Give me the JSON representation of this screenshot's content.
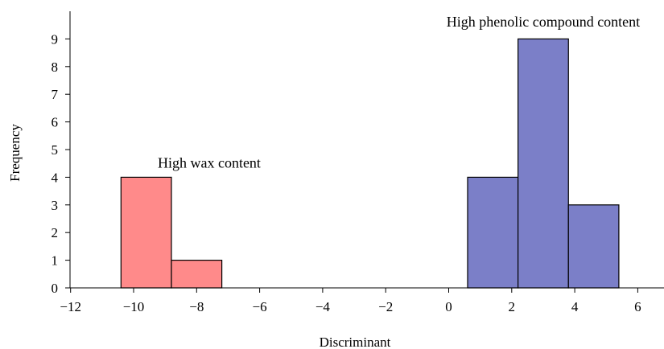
{
  "chart_data": {
    "type": "bar",
    "xlabel": "Discriminant",
    "ylabel": "Frequency",
    "xlim": [
      -12,
      7
    ],
    "ylim": [
      0,
      10
    ],
    "x_ticks": [
      -12,
      -10,
      -8,
      -6,
      -4,
      -2,
      0,
      2,
      4,
      6
    ],
    "x_tick_labels": [
      "−12",
      "−10",
      "−8",
      "−6",
      "−4",
      "−2",
      "0",
      "2",
      "4",
      "6"
    ],
    "y_ticks": [
      0,
      1,
      2,
      3,
      4,
      5,
      6,
      7,
      8,
      9
    ],
    "y_tick_labels": [
      "0",
      "1",
      "2",
      "3",
      "4",
      "5",
      "6",
      "7",
      "8",
      "9"
    ],
    "grid": false,
    "series": [
      {
        "name": "High wax content",
        "color": "#ff8a8a",
        "bins": [
          {
            "x0": -10.4,
            "x1": -8.8,
            "value": 4
          },
          {
            "x0": -8.8,
            "x1": -7.2,
            "value": 1
          }
        ]
      },
      {
        "name": "High phenolic compound content",
        "color": "#7b7fc8",
        "bins": [
          {
            "x0": 0.6,
            "x1": 2.2,
            "value": 4
          },
          {
            "x0": 2.2,
            "x1": 3.8,
            "value": 9
          },
          {
            "x0": 3.8,
            "x1": 5.4,
            "value": 3
          }
        ]
      }
    ],
    "annotations": [
      {
        "text": "High wax content",
        "x": -7.6,
        "y": 4.35
      },
      {
        "text": "High phenolic compound content",
        "x": 3.0,
        "y": 9.45
      }
    ]
  }
}
